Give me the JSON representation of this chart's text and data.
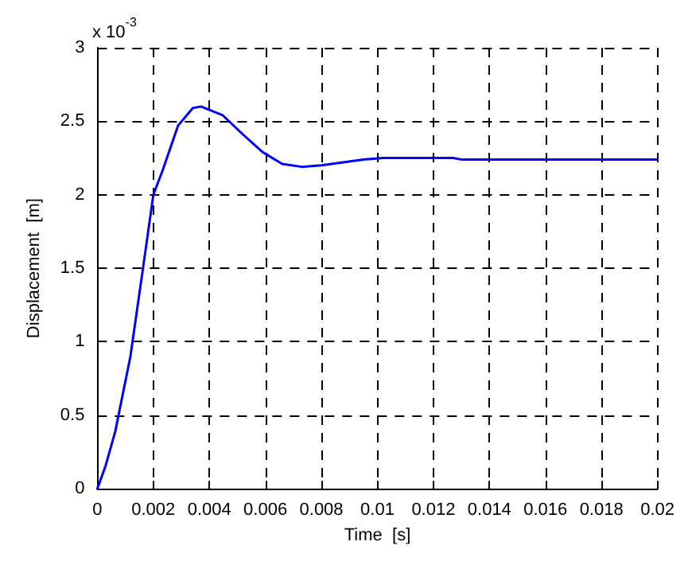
{
  "chart_data": {
    "type": "line",
    "xlabel": "Time  [s]",
    "ylabel": "Displacement  [m]",
    "annotations": [
      "x 10$^{-3}$"
    ],
    "series": [
      {
        "color": "#0000ff",
        "x": [
          0,
          0.0003,
          0.00064,
          0.00118,
          0.00163,
          0.002,
          0.00234,
          0.00288,
          0.00341,
          0.0037,
          0.00448,
          0.0052,
          0.0059,
          0.0066,
          0.0073,
          0.008,
          0.0095,
          0.0102,
          0.0127,
          0.013,
          0.02
        ],
        "values": [
          0,
          0.16,
          0.39,
          0.9,
          1.5,
          2.0,
          2.17,
          2.47,
          2.59,
          2.6,
          2.54,
          2.41,
          2.29,
          2.21,
          2.19,
          2.2,
          2.24,
          2.25,
          2.25,
          2.24,
          2.24
        ]
      }
    ],
    "xlim": [
      0,
      0.02
    ],
    "xticks": [
      0,
      0.002,
      0.004,
      0.006,
      0.008,
      0.01,
      0.012,
      0.014,
      0.016,
      0.018,
      0.02
    ],
    "ylim": [
      0,
      3
    ],
    "yticks": [
      0,
      0.5,
      1,
      1.5,
      2,
      2.5,
      3
    ],
    "grid": true,
    "marker": "none",
    "line_style": "solid"
  }
}
